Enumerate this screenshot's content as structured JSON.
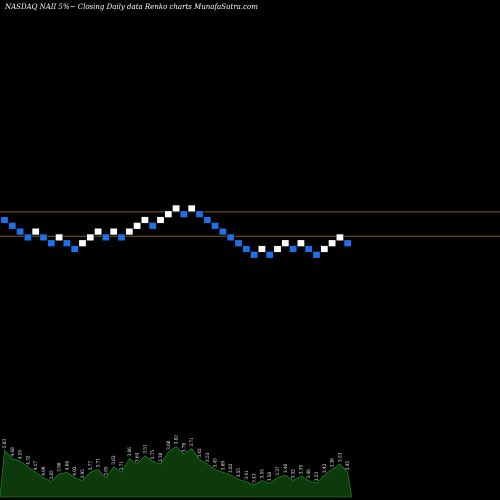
{
  "header": {
    "title": "NASDAQ NAII 5%~  Closing Daily data  Renko  charts MunafaSutra.com"
  },
  "colors": {
    "background": "#000000",
    "up_brick": "#ffffff",
    "down_brick": "#1f6fe6",
    "brick_stroke": "#000000",
    "reference_line": "#8a5a18",
    "volume_fill": "#0c3a0c",
    "volume_stroke": "#1f9a1f"
  },
  "chart_data": {
    "type": "renko",
    "brick_levels": [
      15,
      14,
      13,
      12,
      13,
      12,
      11,
      12,
      11,
      10,
      11,
      12,
      13,
      12,
      13,
      12,
      13,
      14,
      15,
      14,
      15,
      16,
      17,
      16,
      17,
      16,
      15,
      14,
      13,
      12,
      11,
      10,
      9,
      10,
      9,
      10,
      11,
      10,
      11,
      10,
      9,
      10,
      11,
      12,
      11
    ],
    "brick_directions": [
      "down",
      "down",
      "down",
      "down",
      "up",
      "down",
      "down",
      "up",
      "down",
      "down",
      "up",
      "up",
      "up",
      "down",
      "up",
      "down",
      "up",
      "up",
      "up",
      "down",
      "up",
      "up",
      "up",
      "down",
      "up",
      "down",
      "down",
      "down",
      "down",
      "down",
      "down",
      "down",
      "down",
      "up",
      "down",
      "up",
      "up",
      "down",
      "up",
      "down",
      "down",
      "up",
      "up",
      "up",
      "down"
    ],
    "reference_levels": [
      16.4,
      12.2
    ],
    "volume_values": [
      0.85,
      0.7,
      0.65,
      0.55,
      0.45,
      0.35,
      0.28,
      0.42,
      0.45,
      0.35,
      0.3,
      0.45,
      0.5,
      0.35,
      0.55,
      0.45,
      0.7,
      0.6,
      0.75,
      0.65,
      0.6,
      0.82,
      0.92,
      0.78,
      0.88,
      0.68,
      0.6,
      0.5,
      0.45,
      0.4,
      0.32,
      0.28,
      0.22,
      0.3,
      0.25,
      0.35,
      0.4,
      0.3,
      0.38,
      0.3,
      0.25,
      0.4,
      0.5,
      0.6,
      0.45
    ],
    "volume_labels": [
      "5.03",
      "4.68",
      "4.55",
      "4.32",
      "4.17",
      "4.09",
      "3.85",
      "3.98",
      "4.08",
      "4.02",
      "3.95",
      "3.77",
      "3.71",
      "3.85",
      "3.62",
      "3.71",
      "3.86",
      "3.64",
      "3.51",
      "3.75",
      "3.38",
      "3.60",
      "3.82",
      "3.79",
      "3.71",
      "3.62",
      "3.53",
      "3.45",
      "3.69",
      "3.82",
      "3.55",
      "3.41",
      "3.43",
      "3.55",
      "3.58",
      "3.37",
      "3.46",
      "3.32",
      "3.35",
      "3.46",
      "3.53",
      "3.42",
      "3.38",
      "3.53",
      "3.45"
    ]
  }
}
